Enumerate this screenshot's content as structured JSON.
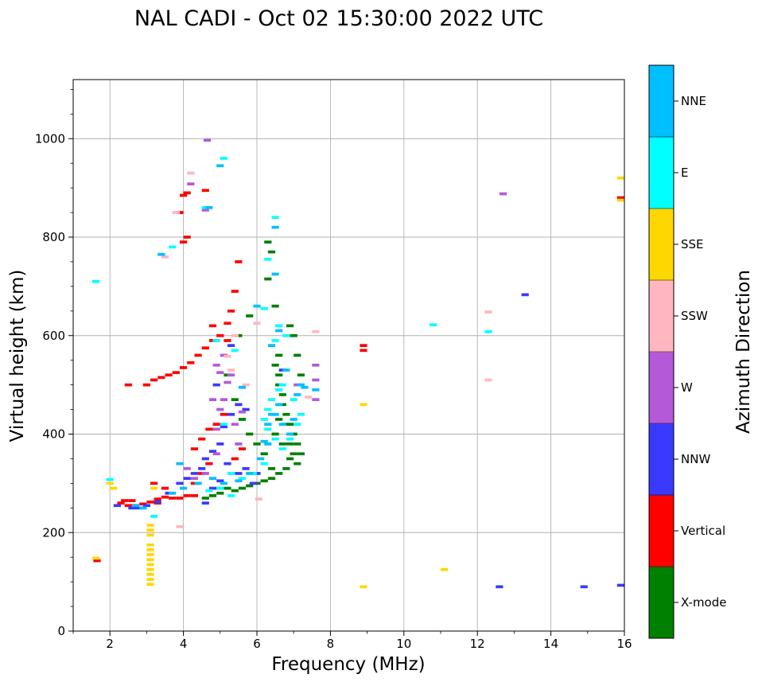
{
  "chart_data": {
    "type": "scatter",
    "title": "NAL CADI - Oct 02 15:30:00 2022 UTC",
    "xlabel": "Frequency (MHz)",
    "ylabel": "Virtual height (km)",
    "xlim": [
      1,
      16
    ],
    "ylim": [
      0,
      1120
    ],
    "x_ticks": [
      2,
      4,
      6,
      8,
      10,
      12,
      14,
      16
    ],
    "y_ticks": [
      0,
      200,
      400,
      600,
      800,
      1000
    ],
    "grid": true,
    "colorbar": {
      "label": "Azimuth Direction",
      "categories": [
        {
          "name": "X-mode",
          "color": "#008000"
        },
        {
          "name": "Vertical",
          "color": "#ff0000"
        },
        {
          "name": "NNW",
          "color": "#3a3aff"
        },
        {
          "name": "W",
          "color": "#b45ad8"
        },
        {
          "name": "SSW",
          "color": "#ffb6c1"
        },
        {
          "name": "SSE",
          "color": "#ffd700"
        },
        {
          "name": "E",
          "color": "#00ffff"
        },
        {
          "name": "NNE",
          "color": "#00bfff"
        }
      ]
    },
    "point_size": {
      "freq_width": 0.2,
      "height": 6
    },
    "series": [
      {
        "name": "X-mode",
        "points": [
          [
            6.3,
            715
          ],
          [
            6.3,
            790
          ],
          [
            6.4,
            770
          ],
          [
            6.5,
            660
          ],
          [
            6.6,
            560
          ],
          [
            6.6,
            520
          ],
          [
            6.7,
            480
          ],
          [
            6.8,
            440
          ],
          [
            6.9,
            420
          ],
          [
            7.0,
            400
          ],
          [
            7.1,
            380
          ],
          [
            7.2,
            360
          ],
          [
            6.5,
            540
          ],
          [
            6.6,
            500
          ],
          [
            6.7,
            460
          ],
          [
            6.8,
            420
          ],
          [
            6.9,
            380
          ],
          [
            7.0,
            360
          ],
          [
            7.1,
            340
          ],
          [
            6.8,
            330
          ],
          [
            6.6,
            320
          ],
          [
            6.4,
            310
          ],
          [
            6.2,
            305
          ],
          [
            6.0,
            300
          ],
          [
            5.8,
            295
          ],
          [
            5.6,
            290
          ],
          [
            5.4,
            285
          ],
          [
            5.2,
            290
          ],
          [
            5.0,
            280
          ],
          [
            4.8,
            275
          ],
          [
            4.6,
            270
          ],
          [
            6.5,
            400
          ],
          [
            6.7,
            380
          ],
          [
            6.9,
            350
          ],
          [
            7.1,
            560
          ],
          [
            7.2,
            520
          ],
          [
            7.0,
            600
          ],
          [
            6.9,
            620
          ],
          [
            6.6,
            430
          ],
          [
            6.4,
            330
          ],
          [
            6.2,
            360
          ],
          [
            6.0,
            380
          ],
          [
            5.8,
            400
          ],
          [
            5.6,
            430
          ],
          [
            5.4,
            470
          ],
          [
            5.2,
            520
          ],
          [
            5.5,
            600
          ],
          [
            5.8,
            640
          ]
        ]
      },
      {
        "name": "Vertical",
        "points": [
          [
            1.65,
            143
          ],
          [
            2.3,
            260
          ],
          [
            2.5,
            255
          ],
          [
            2.7,
            255
          ],
          [
            2.9,
            258
          ],
          [
            3.1,
            262
          ],
          [
            3.3,
            268
          ],
          [
            3.5,
            272
          ],
          [
            3.7,
            270
          ],
          [
            3.9,
            270
          ],
          [
            4.1,
            275
          ],
          [
            4.3,
            275
          ],
          [
            3.0,
            500
          ],
          [
            3.2,
            510
          ],
          [
            3.4,
            515
          ],
          [
            3.6,
            520
          ],
          [
            3.8,
            525
          ],
          [
            4.0,
            535
          ],
          [
            4.2,
            545
          ],
          [
            4.4,
            560
          ],
          [
            4.6,
            575
          ],
          [
            4.8,
            590
          ],
          [
            5.0,
            600
          ],
          [
            5.2,
            625
          ],
          [
            5.3,
            650
          ],
          [
            5.4,
            690
          ],
          [
            5.5,
            750
          ],
          [
            4.0,
            790
          ],
          [
            4.1,
            800
          ],
          [
            3.9,
            850
          ],
          [
            4.0,
            885
          ],
          [
            4.1,
            890
          ],
          [
            4.6,
            895
          ],
          [
            2.5,
            500
          ],
          [
            2.4,
            265
          ],
          [
            2.6,
            265
          ],
          [
            4.3,
            370
          ],
          [
            4.5,
            390
          ],
          [
            4.7,
            410
          ],
          [
            4.9,
            420
          ],
          [
            5.1,
            440
          ],
          [
            4.7,
            340
          ],
          [
            4.5,
            320
          ],
          [
            4.3,
            300
          ],
          [
            5.4,
            350
          ],
          [
            5.6,
            370
          ],
          [
            8.9,
            570
          ],
          [
            8.9,
            580
          ],
          [
            3.2,
            300
          ],
          [
            3.5,
            290
          ],
          [
            3.3,
            260
          ],
          [
            15.95,
            880
          ],
          [
            5.2,
            590
          ],
          [
            4.8,
            620
          ]
        ]
      },
      {
        "name": "NNW",
        "points": [
          [
            2.2,
            255
          ],
          [
            2.6,
            250
          ],
          [
            2.8,
            250
          ],
          [
            3.0,
            255
          ],
          [
            3.3,
            262
          ],
          [
            3.6,
            280
          ],
          [
            3.9,
            300
          ],
          [
            4.1,
            310
          ],
          [
            4.3,
            320
          ],
          [
            4.5,
            330
          ],
          [
            4.6,
            350
          ],
          [
            4.8,
            365
          ],
          [
            5.0,
            380
          ],
          [
            5.1,
            415
          ],
          [
            5.3,
            440
          ],
          [
            5.5,
            460
          ],
          [
            5.7,
            450
          ],
          [
            4.9,
            500
          ],
          [
            5.2,
            340
          ],
          [
            5.0,
            305
          ],
          [
            4.8,
            290
          ],
          [
            5.5,
            320
          ],
          [
            5.7,
            330
          ],
          [
            5.9,
            300
          ],
          [
            6.0,
            320
          ],
          [
            12.6,
            90
          ],
          [
            14.9,
            90
          ],
          [
            15.95,
            93
          ],
          [
            13.3,
            683
          ],
          [
            6.7,
            530
          ],
          [
            5.3,
            580
          ],
          [
            4.6,
            260
          ]
        ]
      },
      {
        "name": "W",
        "points": [
          [
            4.65,
            997
          ],
          [
            4.2,
            908
          ],
          [
            4.6,
            855
          ],
          [
            4.1,
            330
          ],
          [
            4.3,
            310
          ],
          [
            4.6,
            320
          ],
          [
            4.9,
            360
          ],
          [
            5.0,
            450
          ],
          [
            4.9,
            540
          ],
          [
            5.1,
            470
          ],
          [
            5.0,
            525
          ],
          [
            4.8,
            470
          ],
          [
            5.2,
            505
          ],
          [
            5.4,
            420
          ],
          [
            5.5,
            380
          ],
          [
            5.6,
            445
          ],
          [
            7.6,
            540
          ],
          [
            7.6,
            510
          ],
          [
            7.6,
            470
          ],
          [
            7.1,
            500
          ],
          [
            12.7,
            888
          ],
          [
            5.3,
            520
          ],
          [
            4.9,
            410
          ],
          [
            5.1,
            560
          ]
        ]
      },
      {
        "name": "SSW",
        "points": [
          [
            4.2,
            930
          ],
          [
            3.8,
            850
          ],
          [
            3.9,
            212
          ],
          [
            5.3,
            530
          ],
          [
            5.2,
            558
          ],
          [
            5.4,
            600
          ],
          [
            7.6,
            608
          ],
          [
            7.4,
            475
          ],
          [
            6.0,
            625
          ],
          [
            12.3,
            648
          ],
          [
            12.3,
            510
          ],
          [
            6.05,
            268
          ],
          [
            3.5,
            760
          ],
          [
            5.7,
            500
          ]
        ]
      },
      {
        "name": "SSE",
        "points": [
          [
            1.62,
            148
          ],
          [
            3.1,
            95
          ],
          [
            3.1,
            105
          ],
          [
            3.1,
            115
          ],
          [
            3.1,
            125
          ],
          [
            3.1,
            135
          ],
          [
            3.1,
            145
          ],
          [
            3.1,
            155
          ],
          [
            3.1,
            165
          ],
          [
            3.1,
            175
          ],
          [
            3.1,
            195
          ],
          [
            3.1,
            205
          ],
          [
            3.1,
            215
          ],
          [
            2.0,
            300
          ],
          [
            2.1,
            290
          ],
          [
            3.2,
            290
          ],
          [
            8.9,
            90
          ],
          [
            8.9,
            460
          ],
          [
            11.1,
            125
          ],
          [
            15.95,
            920
          ],
          [
            15.95,
            875
          ]
        ]
      },
      {
        "name": "E",
        "points": [
          [
            1.62,
            710
          ],
          [
            5.1,
            960
          ],
          [
            4.6,
            860
          ],
          [
            3.7,
            780
          ],
          [
            6.5,
            840
          ],
          [
            6.3,
            755
          ],
          [
            6.2,
            655
          ],
          [
            6.6,
            620
          ],
          [
            6.5,
            590
          ],
          [
            6.8,
            600
          ],
          [
            6.6,
            490
          ],
          [
            6.7,
            500
          ],
          [
            6.4,
            470
          ],
          [
            6.3,
            450
          ],
          [
            6.2,
            430
          ],
          [
            6.3,
            410
          ],
          [
            6.5,
            390
          ],
          [
            6.7,
            370
          ],
          [
            6.9,
            390
          ],
          [
            7.1,
            420
          ],
          [
            7.2,
            440
          ],
          [
            7.0,
            470
          ],
          [
            6.2,
            340
          ],
          [
            5.9,
            320
          ],
          [
            5.6,
            310
          ],
          [
            5.3,
            320
          ],
          [
            5.0,
            290
          ],
          [
            4.7,
            285
          ],
          [
            5.3,
            275
          ],
          [
            3.2,
            233
          ],
          [
            4.9,
            590
          ],
          [
            5.4,
            570
          ],
          [
            10.8,
            622
          ],
          [
            12.3,
            608
          ],
          [
            2.0,
            308
          ],
          [
            5.1,
            420
          ]
        ]
      },
      {
        "name": "NNE",
        "points": [
          [
            5.0,
            945
          ],
          [
            4.7,
            860
          ],
          [
            3.4,
            765
          ],
          [
            6.5,
            820
          ],
          [
            6.5,
            725
          ],
          [
            6.0,
            660
          ],
          [
            6.4,
            580
          ],
          [
            6.6,
            610
          ],
          [
            7.6,
            490
          ],
          [
            7.3,
            495
          ],
          [
            6.8,
            530
          ],
          [
            6.6,
            460
          ],
          [
            6.4,
            440
          ],
          [
            6.3,
            420
          ],
          [
            6.5,
            440
          ],
          [
            6.7,
            420
          ],
          [
            6.9,
            400
          ],
          [
            7.0,
            430
          ],
          [
            7.1,
            480
          ],
          [
            7.2,
            500
          ],
          [
            6.3,
            380
          ],
          [
            6.1,
            350
          ],
          [
            5.8,
            320
          ],
          [
            5.5,
            305
          ],
          [
            5.1,
            300
          ],
          [
            4.8,
            310
          ],
          [
            4.4,
            300
          ],
          [
            4.0,
            290
          ],
          [
            3.7,
            280
          ],
          [
            2.7,
            255
          ],
          [
            3.9,
            340
          ],
          [
            5.6,
            495
          ],
          [
            6.2,
            385
          ],
          [
            2.9,
            250
          ]
        ]
      }
    ]
  }
}
